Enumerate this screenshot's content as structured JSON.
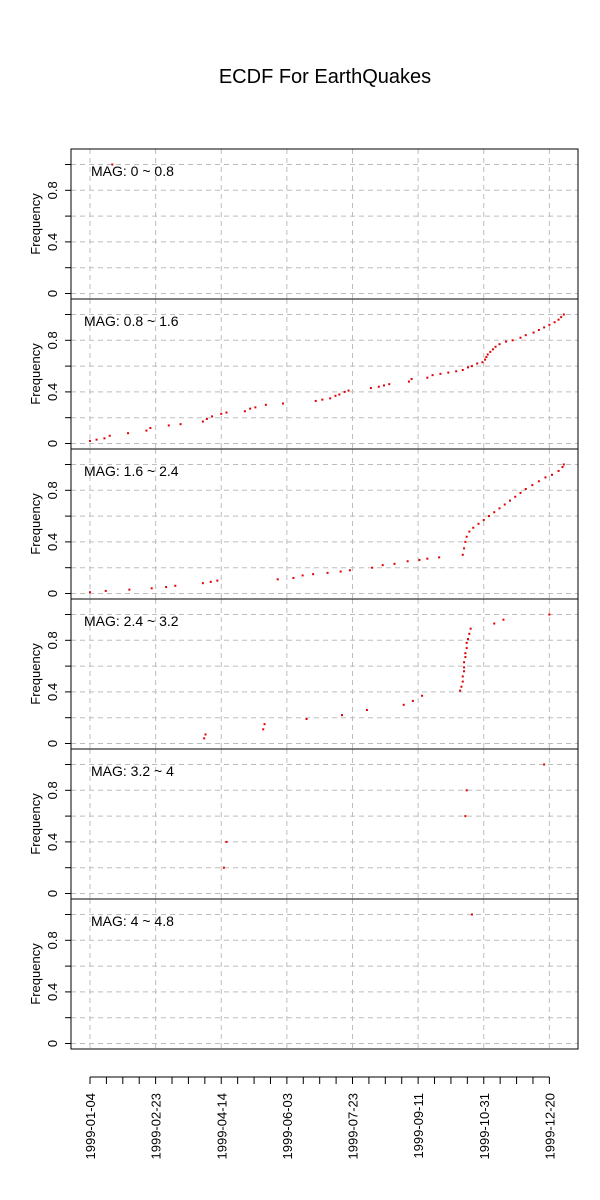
{
  "chart_data": {
    "type": "scatter",
    "title": "ECDF For EarthQuakes",
    "ylabel": "Frequency",
    "xlabel": "",
    "grid": true,
    "ylim": [
      0,
      1
    ],
    "y_ticks": [
      0,
      0.4,
      0.8
    ],
    "y_tick_labels": [
      "0",
      "0.4",
      "0.8"
    ],
    "xlim": [
      "1999-01-04",
      "1999-12-31"
    ],
    "x_ticks": [
      "1999-01-04",
      "1999-02-23",
      "1999-04-14",
      "1999-06-03",
      "1999-07-23",
      "1999-09-11",
      "1999-10-31",
      "1999-12-20"
    ],
    "point_color": "#e00000",
    "panels": [
      {
        "label": "MAG: 0 ~ 0.8",
        "points": [
          [
            "1999-01-21",
            1.0
          ]
        ]
      },
      {
        "label": "MAG: 0.8 ~ 1.6",
        "points": [
          [
            "1999-01-04",
            0.02
          ],
          [
            "1999-01-09",
            0.03
          ],
          [
            "1999-01-15",
            0.04
          ],
          [
            "1999-01-19",
            0.06
          ],
          [
            "1999-02-02",
            0.08
          ],
          [
            "1999-02-16",
            0.1
          ],
          [
            "1999-02-19",
            0.12
          ],
          [
            "1999-03-05",
            0.14
          ],
          [
            "1999-03-14",
            0.15
          ],
          [
            "1999-03-31",
            0.17
          ],
          [
            "1999-04-03",
            0.19
          ],
          [
            "1999-04-07",
            0.21
          ],
          [
            "1999-04-14",
            0.23
          ],
          [
            "1999-04-18",
            0.24
          ],
          [
            "1999-05-02",
            0.25
          ],
          [
            "1999-05-06",
            0.27
          ],
          [
            "1999-05-10",
            0.28
          ],
          [
            "1999-05-18",
            0.3
          ],
          [
            "1999-05-31",
            0.31
          ],
          [
            "1999-06-25",
            0.33
          ],
          [
            "1999-06-30",
            0.34
          ],
          [
            "1999-07-06",
            0.35
          ],
          [
            "1999-07-10",
            0.37
          ],
          [
            "1999-07-13",
            0.38
          ],
          [
            "1999-07-17",
            0.4
          ],
          [
            "1999-07-20",
            0.41
          ],
          [
            "1999-08-06",
            0.43
          ],
          [
            "1999-08-12",
            0.44
          ],
          [
            "1999-08-16",
            0.45
          ],
          [
            "1999-08-20",
            0.46
          ],
          [
            "1999-09-04",
            0.48
          ],
          [
            "1999-09-06",
            0.5
          ],
          [
            "1999-09-18",
            0.51
          ],
          [
            "1999-09-22",
            0.53
          ],
          [
            "1999-09-28",
            0.54
          ],
          [
            "1999-10-04",
            0.55
          ],
          [
            "1999-10-10",
            0.56
          ],
          [
            "1999-10-15",
            0.57
          ],
          [
            "1999-10-19",
            0.59
          ],
          [
            "1999-10-22",
            0.6
          ],
          [
            "1999-10-26",
            0.62
          ],
          [
            "1999-10-30",
            0.63
          ],
          [
            "1999-11-01",
            0.65
          ],
          [
            "1999-11-02",
            0.67
          ],
          [
            "1999-11-03",
            0.69
          ],
          [
            "1999-11-05",
            0.71
          ],
          [
            "1999-11-07",
            0.73
          ],
          [
            "1999-11-09",
            0.75
          ],
          [
            "1999-11-12",
            0.77
          ],
          [
            "1999-11-17",
            0.79
          ],
          [
            "1999-11-22",
            0.8
          ],
          [
            "1999-11-28",
            0.82
          ],
          [
            "1999-12-02",
            0.84
          ],
          [
            "1999-12-08",
            0.86
          ],
          [
            "1999-12-12",
            0.88
          ],
          [
            "1999-12-16",
            0.9
          ],
          [
            "1999-12-20",
            0.92
          ],
          [
            "1999-12-24",
            0.94
          ],
          [
            "1999-12-27",
            0.96
          ],
          [
            "1999-12-29",
            0.98
          ],
          [
            "1999-12-31",
            1.0
          ]
        ]
      },
      {
        "label": "MAG: 1.6 ~ 2.4",
        "points": [
          [
            "1999-01-04",
            0.01
          ],
          [
            "1999-01-16",
            0.02
          ],
          [
            "1999-02-03",
            0.03
          ],
          [
            "1999-02-20",
            0.04
          ],
          [
            "1999-03-03",
            0.05
          ],
          [
            "1999-03-10",
            0.06
          ],
          [
            "1999-03-31",
            0.08
          ],
          [
            "1999-04-06",
            0.09
          ],
          [
            "1999-04-11",
            0.1
          ],
          [
            "1999-05-27",
            0.11
          ],
          [
            "1999-06-08",
            0.12
          ],
          [
            "1999-06-15",
            0.14
          ],
          [
            "1999-06-23",
            0.15
          ],
          [
            "1999-07-04",
            0.16
          ],
          [
            "1999-07-14",
            0.17
          ],
          [
            "1999-07-21",
            0.18
          ],
          [
            "1999-08-07",
            0.2
          ],
          [
            "1999-08-15",
            0.22
          ],
          [
            "1999-08-24",
            0.23
          ],
          [
            "1999-09-03",
            0.25
          ],
          [
            "1999-09-12",
            0.26
          ],
          [
            "1999-09-18",
            0.27
          ],
          [
            "1999-09-27",
            0.28
          ],
          [
            "1999-10-15",
            0.3
          ],
          [
            "1999-10-16",
            0.35
          ],
          [
            "1999-10-17",
            0.4
          ],
          [
            "1999-10-18",
            0.44
          ],
          [
            "1999-10-20",
            0.48
          ],
          [
            "1999-10-23",
            0.51
          ],
          [
            "1999-10-27",
            0.54
          ],
          [
            "1999-10-31",
            0.57
          ],
          [
            "1999-11-04",
            0.6
          ],
          [
            "1999-11-08",
            0.63
          ],
          [
            "1999-11-12",
            0.66
          ],
          [
            "1999-11-16",
            0.69
          ],
          [
            "1999-11-20",
            0.72
          ],
          [
            "1999-11-24",
            0.75
          ],
          [
            "1999-11-28",
            0.78
          ],
          [
            "1999-12-02",
            0.81
          ],
          [
            "1999-12-07",
            0.84
          ],
          [
            "1999-12-12",
            0.87
          ],
          [
            "1999-12-17",
            0.9
          ],
          [
            "1999-12-22",
            0.92
          ],
          [
            "1999-12-27",
            0.95
          ],
          [
            "1999-12-30",
            0.98
          ],
          [
            "1999-12-31",
            1.0
          ]
        ]
      },
      {
        "label": "MAG: 2.4 ~ 3.2",
        "points": [
          [
            "1999-04-01",
            0.04
          ],
          [
            "1999-04-02",
            0.07
          ],
          [
            "1999-05-16",
            0.11
          ],
          [
            "1999-05-17",
            0.15
          ],
          [
            "1999-06-18",
            0.19
          ],
          [
            "1999-07-15",
            0.22
          ],
          [
            "1999-08-03",
            0.26
          ],
          [
            "1999-08-31",
            0.3
          ],
          [
            "1999-09-07",
            0.33
          ],
          [
            "1999-09-14",
            0.37
          ],
          [
            "1999-10-13",
            0.41
          ],
          [
            "1999-10-14",
            0.44
          ],
          [
            "1999-10-15",
            0.48
          ],
          [
            "1999-10-15",
            0.52
          ],
          [
            "1999-10-16",
            0.56
          ],
          [
            "1999-10-16",
            0.59
          ],
          [
            "1999-10-16",
            0.63
          ],
          [
            "1999-10-17",
            0.67
          ],
          [
            "1999-10-17",
            0.7
          ],
          [
            "1999-10-18",
            0.74
          ],
          [
            "1999-10-18",
            0.78
          ],
          [
            "1999-10-19",
            0.81
          ],
          [
            "1999-10-20",
            0.85
          ],
          [
            "1999-10-21",
            0.89
          ],
          [
            "1999-11-08",
            0.93
          ],
          [
            "1999-11-15",
            0.96
          ],
          [
            "1999-12-20",
            1.0
          ]
        ]
      },
      {
        "label": "MAG: 3.2 ~ 4",
        "points": [
          [
            "1999-04-16",
            0.2
          ],
          [
            "1999-04-18",
            0.4
          ],
          [
            "1999-10-17",
            0.6
          ],
          [
            "1999-10-18",
            0.8
          ],
          [
            "1999-12-16",
            1.0
          ]
        ]
      },
      {
        "label": "MAG: 4 ~ 4.8",
        "points": [
          [
            "1999-10-22",
            1.0
          ]
        ]
      }
    ]
  }
}
